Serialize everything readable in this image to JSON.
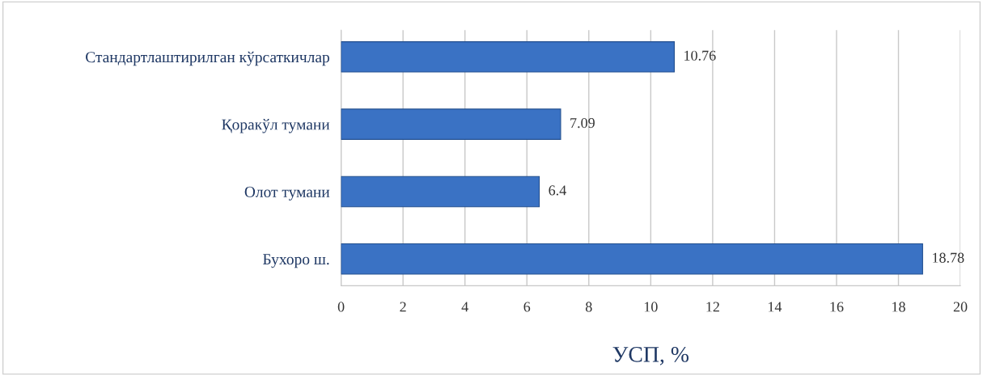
{
  "chart_data": {
    "type": "bar",
    "orientation": "horizontal",
    "xlabel": "УСП, %",
    "categories": [
      "Стандартлаштирилган кўрсаткичлар",
      "Қоракўл тумани",
      "Олот тумани",
      "Бухоро ш."
    ],
    "values": [
      10.76,
      7.09,
      6.4,
      18.78
    ],
    "color": "#3a72c4",
    "xlim": [
      0,
      20
    ],
    "xticks": [
      0,
      2,
      4,
      6,
      8,
      10,
      12,
      14,
      16,
      18,
      20
    ],
    "grid": "x",
    "data_labels": true
  }
}
